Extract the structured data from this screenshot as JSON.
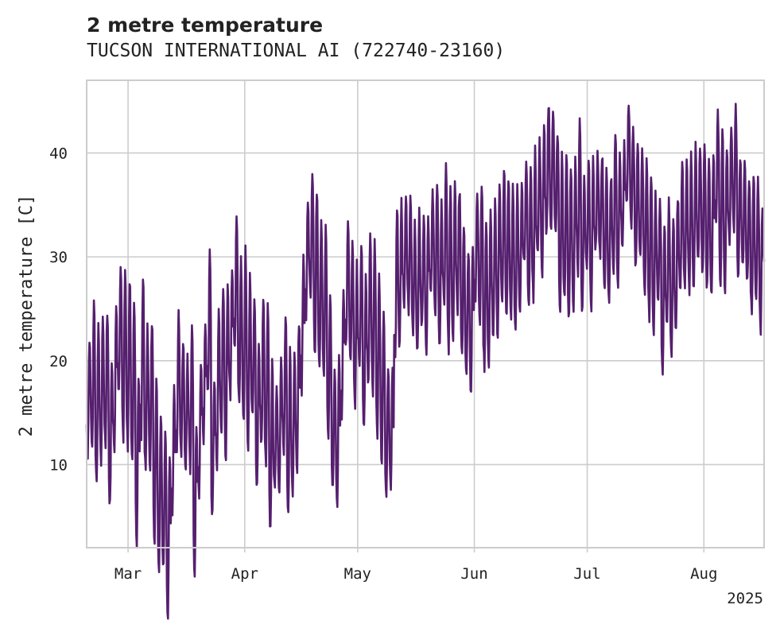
{
  "chart_data": {
    "type": "line",
    "title": "2 metre temperature",
    "subtitle": "TUCSON INTERNATIONAL AI (722740-23160)",
    "xlabel": "",
    "ylabel": "2 metre temperature [C]",
    "x_tick_labels": [
      "Mar",
      "Apr",
      "May",
      "Jun",
      "Jul",
      "Aug"
    ],
    "x_offset_label": "2025",
    "xlim": [
      "2025-02-18",
      "2025-08-17"
    ],
    "ylim": [
      2,
      47
    ],
    "y_ticks": [
      10,
      20,
      30,
      40
    ],
    "grid": true,
    "legend": "none",
    "series": [
      {
        "color": "#551f6e",
        "resolution": "3-hourly",
        "x_start": "2025-02-18",
        "x_end": "2025-08-17",
        "daily_max": [
          22,
          25.5,
          23,
          24.5,
          25,
          20,
          25.5,
          29,
          29,
          28,
          25,
          19,
          28,
          23,
          24,
          18,
          15,
          13,
          10.5,
          17,
          24.5,
          22,
          20,
          24,
          14,
          20,
          24,
          31,
          18,
          25,
          27,
          27,
          28.5,
          34,
          29.5,
          30.5,
          28,
          25.5,
          22,
          26,
          25,
          19.5,
          18,
          21,
          24,
          21,
          21,
          24,
          30,
          35.5,
          37.5,
          36.5,
          34,
          33,
          26,
          19,
          20,
          27,
          34,
          31,
          29,
          31,
          28,
          32,
          31,
          28.5,
          25,
          19,
          20,
          35,
          35,
          35.5,
          35.5,
          33,
          34.5,
          34,
          34,
          36,
          37.5,
          35,
          38.5,
          36.5,
          37,
          36.5,
          33,
          31,
          31.5,
          36,
          37.5,
          33,
          35,
          35,
          37.5,
          38.5,
          38,
          37,
          36.5,
          37,
          38.5,
          38.5,
          40,
          41,
          43,
          45,
          43.5,
          42,
          39.5,
          40,
          39,
          39,
          43,
          38,
          39,
          39,
          40,
          40,
          38,
          38,
          42,
          40,
          41,
          45,
          42,
          41,
          40,
          39.5,
          38,
          36,
          35.5,
          33,
          35,
          34,
          36,
          39,
          39,
          40,
          41,
          40.5,
          41,
          39,
          40,
          43.5,
          42,
          41,
          42,
          44,
          40,
          39,
          38,
          38,
          37,
          35,
          36.5
        ]
      }
    ]
  }
}
